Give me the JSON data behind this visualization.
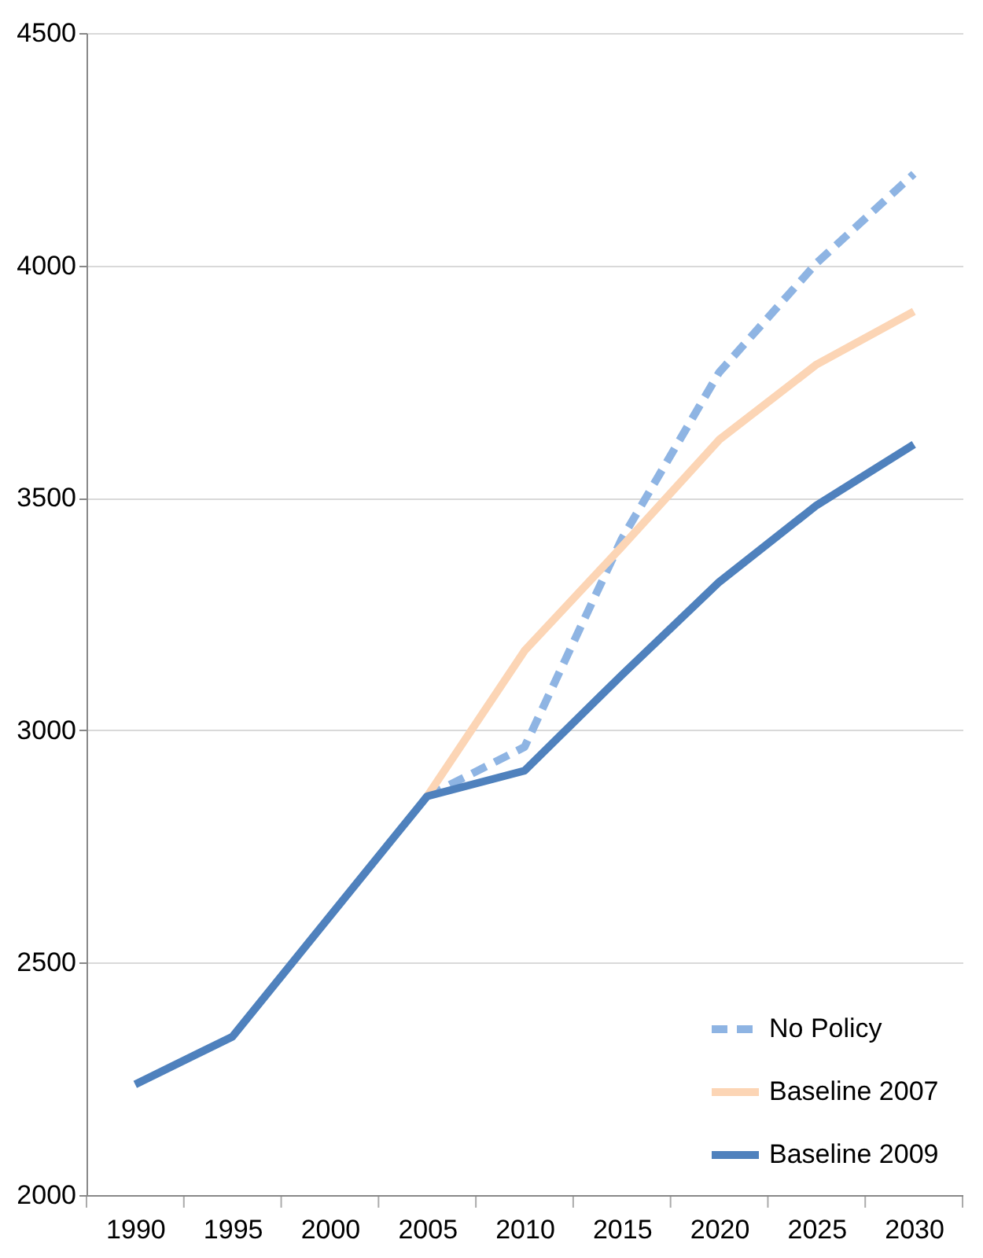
{
  "chart_data": {
    "type": "line",
    "categories": [
      "1990",
      "1995",
      "2000",
      "2005",
      "2010",
      "2015",
      "2020",
      "2025",
      "2030"
    ],
    "series": [
      {
        "name": "No Policy",
        "color": "#8eb4e3",
        "line_style": "dashed",
        "values": [
          null,
          null,
          null,
          2858,
          2964,
          3412,
          3770,
          4005,
          4197
        ]
      },
      {
        "name": "Baseline 2007",
        "color": "#fcd5b5",
        "line_style": "solid",
        "values": [
          null,
          null,
          null,
          2858,
          3171,
          3395,
          3625,
          3787,
          3901
        ]
      },
      {
        "name": "Baseline 2009",
        "color": "#4f81bd",
        "line_style": "solid",
        "values": [
          2238,
          2341,
          2600,
          2858,
          2913,
          3119,
          3319,
          3484,
          3615
        ]
      }
    ],
    "ylim": [
      2000,
      4500
    ],
    "yticks": [
      2000,
      2500,
      3000,
      3500,
      4000,
      4500
    ],
    "grid": "y",
    "legend": "bottom right",
    "marker": "none"
  }
}
